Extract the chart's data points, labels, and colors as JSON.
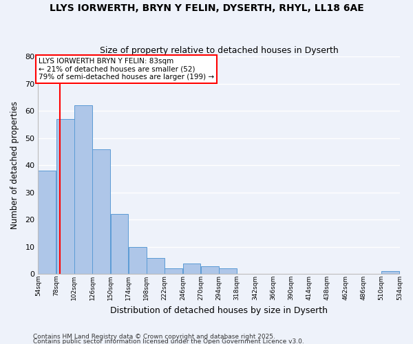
{
  "title_line1": "LLYS IORWERTH, BRYN Y FELIN, DYSERTH, RHYL, LL18 6AE",
  "title_line2": "Size of property relative to detached houses in Dyserth",
  "xlabel": "Distribution of detached houses by size in Dyserth",
  "ylabel": "Number of detached properties",
  "bin_edges": [
    54,
    78,
    102,
    126,
    150,
    174,
    198,
    222,
    246,
    270,
    294,
    318,
    342,
    366,
    390,
    414,
    438,
    462,
    486,
    510,
    534
  ],
  "counts": [
    38,
    57,
    62,
    46,
    22,
    10,
    6,
    2,
    4,
    3,
    2,
    0,
    0,
    0,
    0,
    0,
    0,
    0,
    0,
    1
  ],
  "bar_color": "#aec6e8",
  "bar_edge_color": "#5b9bd5",
  "vline_x": 83,
  "vline_color": "red",
  "annotation_text": "LLYS IORWERTH BRYN Y FELIN: 83sqm\n← 21% of detached houses are smaller (52)\n79% of semi-detached houses are larger (199) →",
  "annotation_box_color": "white",
  "annotation_box_edge": "red",
  "ylim": [
    0,
    80
  ],
  "yticks": [
    0,
    10,
    20,
    30,
    40,
    50,
    60,
    70,
    80
  ],
  "background_color": "#eef2fa",
  "grid_color": "white",
  "footer1": "Contains HM Land Registry data © Crown copyright and database right 2025.",
  "footer2": "Contains public sector information licensed under the Open Government Licence v3.0."
}
